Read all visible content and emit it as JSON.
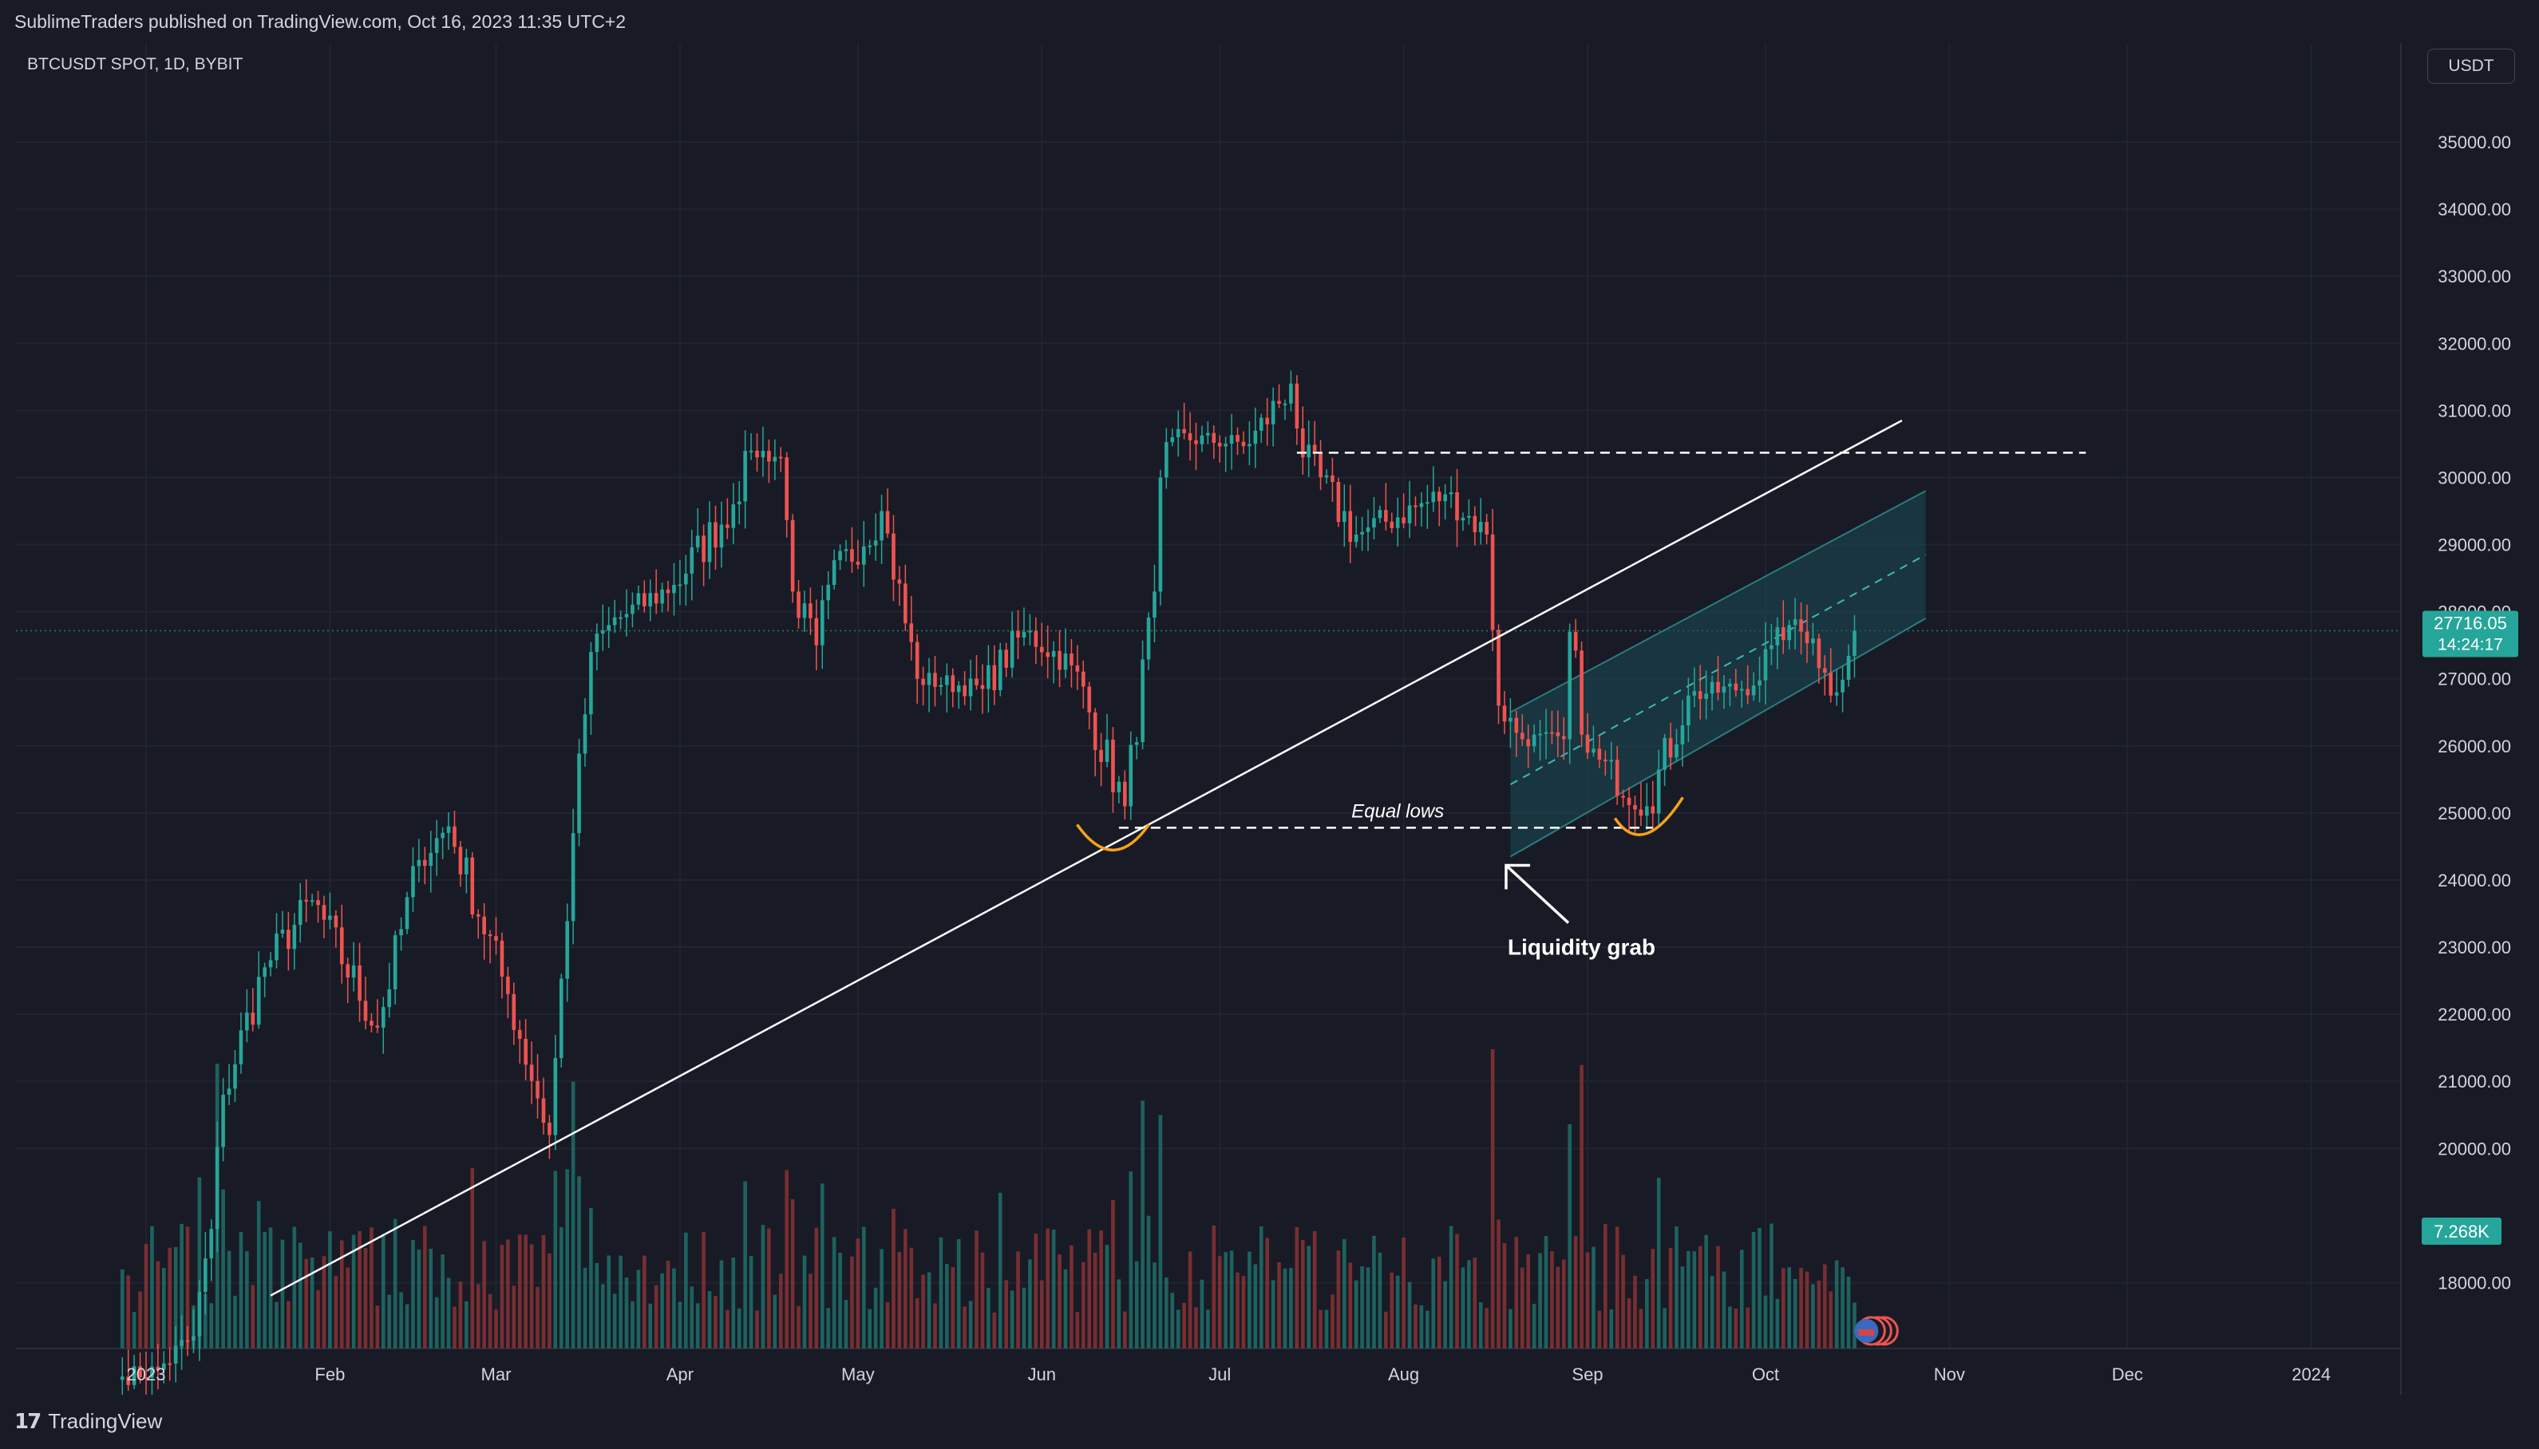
{
  "header": {
    "published_text": "SublimeTraders published on TradingView.com, Oct 16, 2023 11:35 UTC+2"
  },
  "footer": {
    "brand_label": "TradingView",
    "brand_icon": "tradingview-logo-icon"
  },
  "colors": {
    "background": "#181b25",
    "up": "#26a69a",
    "down": "#ef5350",
    "text": "#d1d4dc",
    "annotation_orange": "#f7a21b",
    "channel_fill": "#1b4a55"
  },
  "chart_data": {
    "type": "candlestick",
    "symbol_label": "BTCUSDT SPOT, 1D, BYBIT",
    "currency_button": "USDT",
    "price_axis": {
      "ylim": [
        17500,
        35800
      ],
      "ticks": [
        "35000.00",
        "34000.00",
        "33000.00",
        "32000.00",
        "31000.00",
        "30000.00",
        "29000.00",
        "28000.00",
        "27000.00",
        "26000.00",
        "25000.00",
        "24000.00",
        "23000.00",
        "22000.00",
        "21000.00",
        "20000.00",
        "18000.00"
      ]
    },
    "time_axis": {
      "ticks": [
        "2023",
        "Feb",
        "Mar",
        "Apr",
        "May",
        "Jun",
        "Jul",
        "Aug",
        "Sep",
        "Oct",
        "Nov",
        "Dec",
        "2024"
      ]
    },
    "last_price": {
      "value": "27716.05",
      "countdown": "14:24:17"
    },
    "volume_label": "7.268K",
    "grid": true,
    "keypoints": [
      {
        "date": "2022-12-28",
        "close": 16600
      },
      {
        "date": "2023-01-03",
        "close": 16700
      },
      {
        "date": "2023-01-09",
        "close": 17200
      },
      {
        "date": "2023-01-12",
        "close": 18800
      },
      {
        "date": "2023-01-14",
        "close": 20800
      },
      {
        "date": "2023-01-21",
        "close": 22700
      },
      {
        "date": "2023-01-29",
        "close": 23700
      },
      {
        "date": "2023-02-09",
        "close": 21800
      },
      {
        "date": "2023-02-16",
        "close": 24300
      },
      {
        "date": "2023-02-21",
        "close": 24800
      },
      {
        "date": "2023-03-03",
        "close": 22300
      },
      {
        "date": "2023-03-10",
        "close": 20200
      },
      {
        "date": "2023-03-14",
        "close": 24700
      },
      {
        "date": "2023-03-17",
        "close": 27400
      },
      {
        "date": "2023-03-20",
        "close": 27800
      },
      {
        "date": "2023-03-31",
        "close": 28400
      },
      {
        "date": "2023-04-10",
        "close": 29600
      },
      {
        "date": "2023-04-13",
        "close": 30400
      },
      {
        "date": "2023-04-18",
        "close": 30300
      },
      {
        "date": "2023-04-20",
        "close": 28300
      },
      {
        "date": "2023-04-24",
        "close": 27500
      },
      {
        "date": "2023-04-26",
        "close": 28400
      },
      {
        "date": "2023-05-05",
        "close": 29500
      },
      {
        "date": "2023-05-11",
        "close": 27000
      },
      {
        "date": "2023-05-22",
        "close": 26850
      },
      {
        "date": "2023-05-29",
        "close": 27700
      },
      {
        "date": "2023-06-06",
        "close": 27200
      },
      {
        "date": "2023-06-15",
        "close": 25100
      },
      {
        "date": "2023-06-20",
        "close": 28300
      },
      {
        "date": "2023-06-21",
        "close": 30000
      },
      {
        "date": "2023-06-23",
        "close": 30600
      },
      {
        "date": "2023-07-06",
        "close": 30500
      },
      {
        "date": "2023-07-13",
        "close": 31400
      },
      {
        "date": "2023-07-15",
        "close": 30300
      },
      {
        "date": "2023-07-24",
        "close": 29150
      },
      {
        "date": "2023-08-08",
        "close": 29750
      },
      {
        "date": "2023-08-15",
        "close": 29150
      },
      {
        "date": "2023-08-17",
        "close": 26600
      },
      {
        "date": "2023-08-21",
        "close": 26100
      },
      {
        "date": "2023-08-28",
        "close": 26100
      },
      {
        "date": "2023-08-29",
        "close": 27700
      },
      {
        "date": "2023-09-01",
        "close": 25900
      },
      {
        "date": "2023-09-11",
        "close": 25100
      },
      {
        "date": "2023-09-18",
        "close": 26750
      },
      {
        "date": "2023-09-29",
        "close": 26900
      },
      {
        "date": "2023-10-02",
        "close": 27500
      },
      {
        "date": "2023-10-05",
        "close": 27800
      },
      {
        "date": "2023-10-09",
        "close": 27600
      },
      {
        "date": "2023-10-12",
        "close": 26750
      },
      {
        "date": "2023-10-16",
        "close": 27716
      }
    ],
    "annotations": {
      "equal_lows_label": "Equal lows",
      "liquidity_grab_label": "Liquidity grab",
      "equal_lows_level": 24780,
      "resistance_level": 30370
    }
  }
}
